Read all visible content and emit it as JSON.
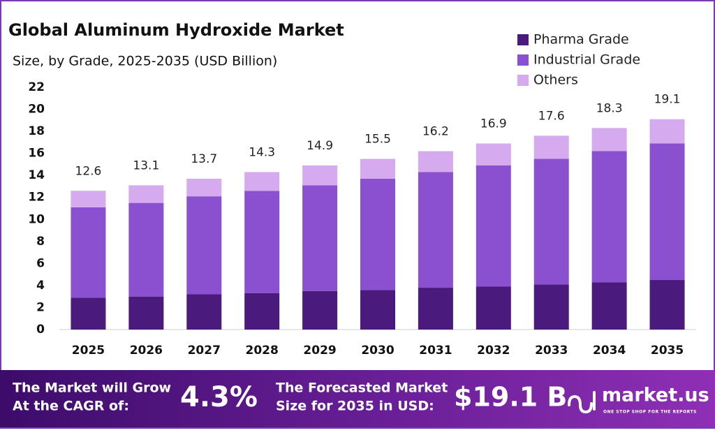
{
  "chart_data": {
    "type": "stacked_bar",
    "title": "Global Aluminum Hydroxide Market",
    "subtitle": "Size, by Grade, 2025-2035 (USD Billion)",
    "categories": [
      "2025",
      "2026",
      "2027",
      "2028",
      "2029",
      "2030",
      "2031",
      "2032",
      "2033",
      "2034",
      "2035"
    ],
    "series": [
      {
        "name": "Pharma Grade",
        "color": "#4a1a7c",
        "values": [
          2.9,
          3.0,
          3.2,
          3.3,
          3.5,
          3.6,
          3.8,
          3.9,
          4.1,
          4.3,
          4.5
        ]
      },
      {
        "name": "Industrial Grade",
        "color": "#8a50cf",
        "values": [
          8.2,
          8.5,
          8.9,
          9.3,
          9.6,
          10.1,
          10.5,
          11.0,
          11.4,
          11.9,
          12.4
        ]
      },
      {
        "name": "Others",
        "color": "#d5aaee",
        "values": [
          1.5,
          1.6,
          1.6,
          1.7,
          1.8,
          1.8,
          1.9,
          2.0,
          2.1,
          2.1,
          2.2
        ]
      }
    ],
    "totals": [
      12.6,
      13.1,
      13.7,
      14.3,
      14.9,
      15.5,
      16.2,
      16.9,
      17.6,
      18.3,
      19.1
    ],
    "ylim": [
      0,
      22
    ],
    "yticks": [
      0,
      2,
      4,
      6,
      8,
      10,
      12,
      14,
      16,
      18,
      20,
      22
    ],
    "grid": false,
    "legend": "top-right"
  },
  "footer": {
    "cagr_label": [
      "The Market will Grow",
      "At the CAGR of:"
    ],
    "cagr": "4.3%",
    "forecast_label": [
      "The Forecasted Market",
      "Size for 2035 in USD:"
    ],
    "forecast": "$19.1 B",
    "brand": "market.us",
    "tagline": "ONE STOP SHOP FOR THE REPORTS"
  }
}
